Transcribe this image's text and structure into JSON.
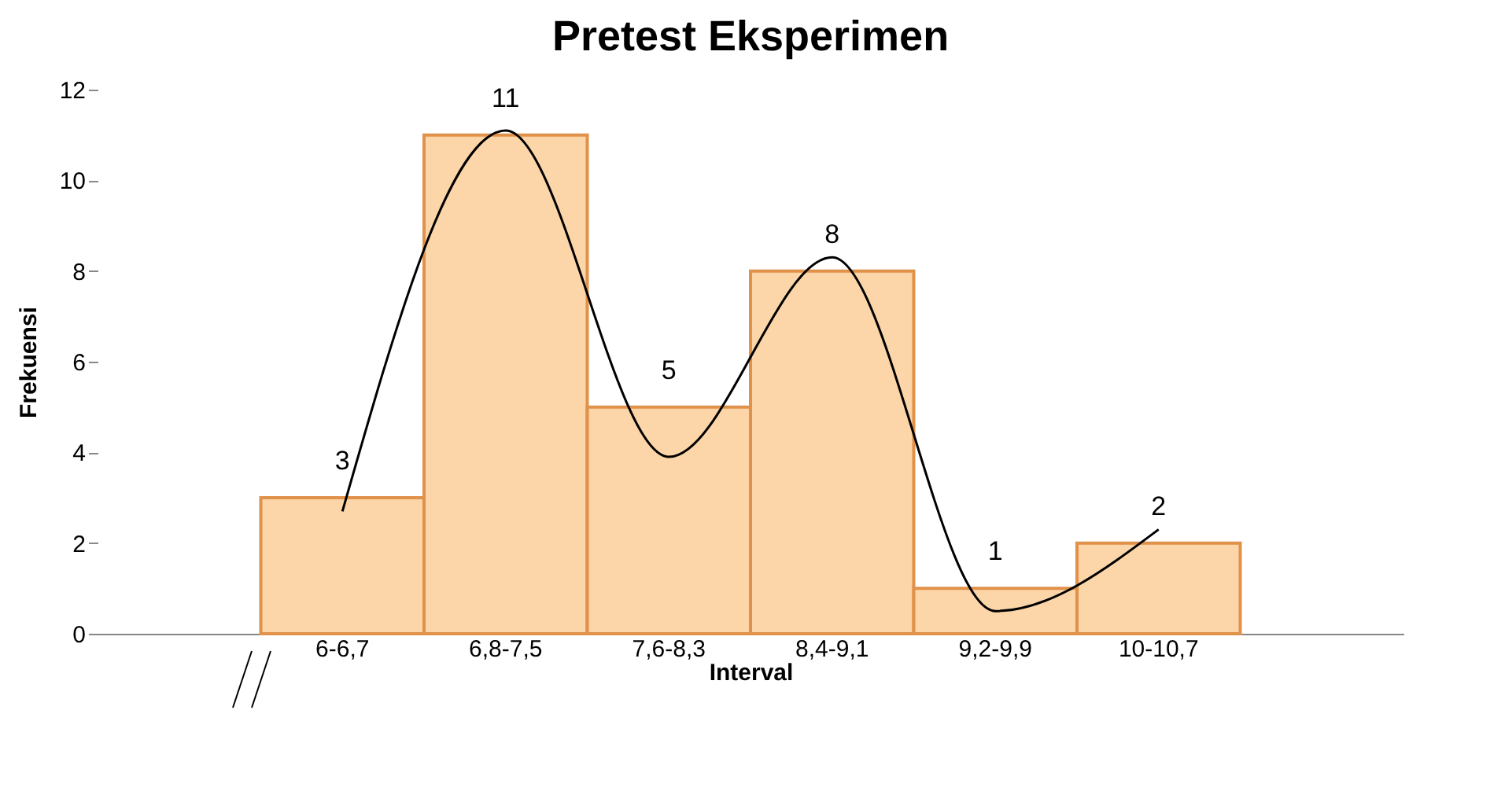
{
  "chart_data": {
    "type": "bar",
    "title": "Pretest Eksperimen",
    "xlabel": "Interval",
    "ylabel": "Frekuensi",
    "categories": [
      "6-6,7",
      "6,8-7,5",
      "7,6-8,3",
      "8,4-9,1",
      "9,2-9,9",
      "10-10,7"
    ],
    "series": [
      {
        "color": "#fcd5a8",
        "values": [
          3,
          11,
          5,
          8,
          1,
          2
        ],
        "value_labels": [
          "3",
          "11",
          "5",
          "8",
          "1",
          "2"
        ]
      },
      {
        "type": "line",
        "color": "#000000",
        "values": [
          2.7,
          11.1,
          3.9,
          8.3,
          0.5,
          2.3
        ]
      }
    ],
    "ylim": [
      0,
      12
    ],
    "yticks": [
      0,
      2,
      4,
      6,
      8,
      10,
      12
    ]
  }
}
